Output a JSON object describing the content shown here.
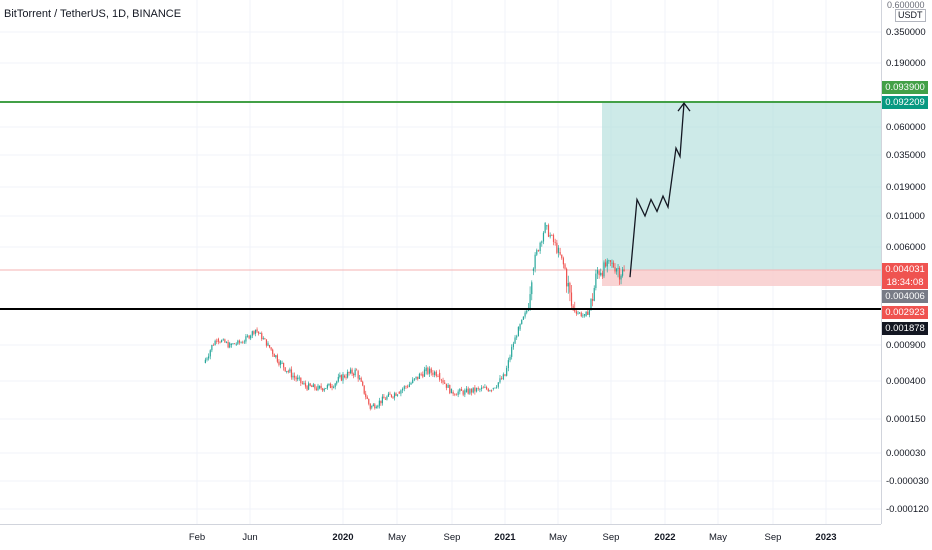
{
  "header": {
    "title": "BitTorrent / TetherUS, 1D, BINANCE",
    "unit_label": "USDT",
    "top_tick": "0.600000"
  },
  "price_badges": {
    "target_upper": "0.093900",
    "target_lower": "0.092209",
    "stop_price": "0.004031",
    "countdown": "18:34:08",
    "entry_price": "0.004006",
    "support": "0.002923",
    "last_low": "0.001878"
  },
  "colors": {
    "background": "#ffffff",
    "grid": "#f0f3fa",
    "candle_up": "#26a69a",
    "candle_down": "#ef5350",
    "target_zone": "#b2dfdb",
    "stop_zone": "#f8c9c9",
    "target_line": "#43a047",
    "support_line": "#000000",
    "projection": "#131722",
    "axis_text": "#131722"
  },
  "chart_data": {
    "type": "candlestick",
    "title": "BitTorrent / TetherUS, 1D, BINANCE",
    "y_scale": "log-like",
    "y_ticks": [
      "0.350000",
      "0.190000",
      "0.060000",
      "0.035000",
      "0.019000",
      "0.011000",
      "0.006000",
      "0.000900",
      "0.000400",
      "0.000150",
      "0.000030",
      "-0.000030",
      "-0.000120"
    ],
    "x_ticks": [
      "Feb",
      "Jun",
      "2020",
      "May",
      "Sep",
      "2021",
      "May",
      "Sep",
      "2022",
      "May",
      "Sep",
      "2023"
    ],
    "grid": true,
    "price_series": [
      {
        "date": "2019-02",
        "close": 0.0006
      },
      {
        "date": "2019-03",
        "close": 0.0011
      },
      {
        "date": "2019-04",
        "close": 0.0009
      },
      {
        "date": "2019-05",
        "close": 0.001
      },
      {
        "date": "2019-06",
        "close": 0.0015
      },
      {
        "date": "2019-07",
        "close": 0.0009
      },
      {
        "date": "2019-08",
        "close": 0.0006
      },
      {
        "date": "2019-09",
        "close": 0.00045
      },
      {
        "date": "2019-10",
        "close": 0.00035
      },
      {
        "date": "2019-11",
        "close": 0.00033
      },
      {
        "date": "2019-12",
        "close": 0.00035
      },
      {
        "date": "2020-01",
        "close": 0.00045
      },
      {
        "date": "2020-02",
        "close": 0.0005
      },
      {
        "date": "2020-03",
        "close": 0.0002
      },
      {
        "date": "2020-04",
        "close": 0.00025
      },
      {
        "date": "2020-05",
        "close": 0.0003
      },
      {
        "date": "2020-06",
        "close": 0.00038
      },
      {
        "date": "2020-07",
        "close": 0.0005
      },
      {
        "date": "2020-08",
        "close": 0.00048
      },
      {
        "date": "2020-09",
        "close": 0.0003
      },
      {
        "date": "2020-10",
        "close": 0.0003
      },
      {
        "date": "2020-11",
        "close": 0.00032
      },
      {
        "date": "2020-12",
        "close": 0.00033
      },
      {
        "date": "2021-01",
        "close": 0.00045
      },
      {
        "date": "2021-02",
        "close": 0.0015
      },
      {
        "date": "2021-03",
        "close": 0.004
      },
      {
        "date": "2021-04",
        "close": 0.009
      },
      {
        "date": "2021-05",
        "close": 0.0055
      },
      {
        "date": "2021-06",
        "close": 0.003
      },
      {
        "date": "2021-07",
        "close": 0.0023
      },
      {
        "date": "2021-08",
        "close": 0.004
      },
      {
        "date": "2021-09",
        "close": 0.0045
      },
      {
        "date": "2021-10",
        "close": 0.0039
      }
    ],
    "projection_path": [
      {
        "date": "2021-10",
        "price": 0.0038
      },
      {
        "date": "2021-11",
        "price": 0.015
      },
      {
        "date": "2021-11",
        "price": 0.011
      },
      {
        "date": "2021-12",
        "price": 0.015
      },
      {
        "date": "2021-12",
        "price": 0.012
      },
      {
        "date": "2021-12",
        "price": 0.016
      },
      {
        "date": "2022-01",
        "price": 0.013
      },
      {
        "date": "2022-02",
        "price": 0.04
      },
      {
        "date": "2022-02",
        "price": 0.034
      },
      {
        "date": "2022-03",
        "price": 0.092
      }
    ],
    "levels": {
      "target": 0.0939,
      "stop": 0.004031,
      "entry": 0.004006,
      "support": 0.002923
    }
  }
}
